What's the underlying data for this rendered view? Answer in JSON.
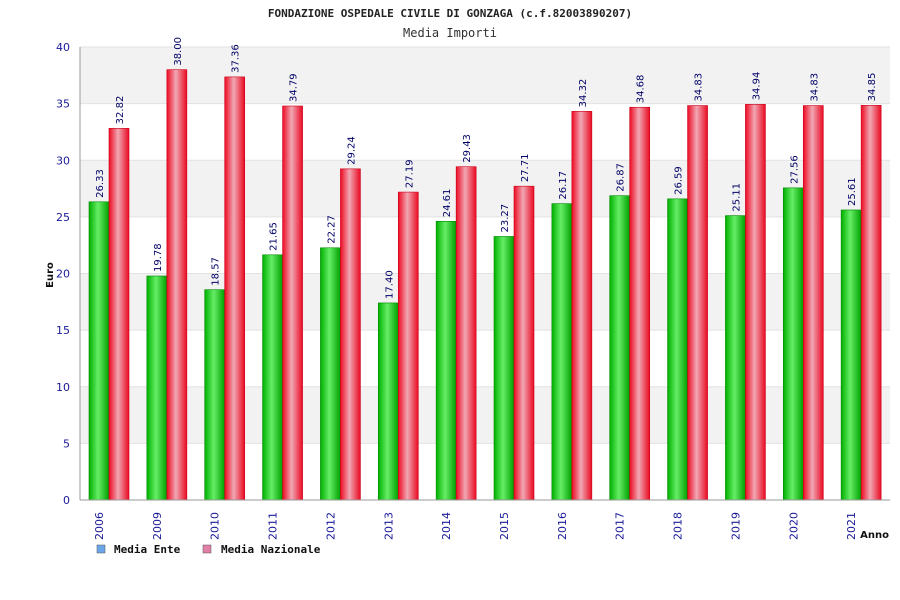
{
  "chart_data": {
    "type": "bar",
    "title": "FONDAZIONE OSPEDALE CIVILE DI GONZAGA (c.f.82003890207)",
    "subtitle": "Media Importi",
    "xlabel": "Anno",
    "ylabel": "Euro",
    "ylim": [
      0,
      40
    ],
    "yticks": [
      0,
      5,
      10,
      15,
      20,
      25,
      30,
      35,
      40
    ],
    "grid": true,
    "legend_position": "bottom-left",
    "categories": [
      "2006",
      "2009",
      "2010",
      "2011",
      "2012",
      "2013",
      "2014",
      "2015",
      "2016",
      "2017",
      "2018",
      "2019",
      "2020",
      "2021"
    ],
    "series": [
      {
        "name": "Media Ente",
        "color": "#00b000",
        "legend_color": "#6aa6e8",
        "values": [
          26.33,
          19.78,
          18.57,
          21.65,
          22.27,
          17.4,
          24.61,
          23.27,
          26.17,
          26.87,
          26.59,
          25.11,
          27.56,
          25.61
        ],
        "labels": [
          "26.33",
          "19.78",
          "18.57",
          "21.65",
          "22.27",
          "17.40",
          "24.61",
          "23.27",
          "26.17",
          "26.87",
          "26.59",
          "25.11",
          "27.56",
          "25.61"
        ]
      },
      {
        "name": "Media Nazionale",
        "color": "#e8102a",
        "legend_color": "#e27fa8",
        "values": [
          32.82,
          38.0,
          37.36,
          34.79,
          29.24,
          27.19,
          29.43,
          27.71,
          34.32,
          34.68,
          34.83,
          34.94,
          34.83,
          34.85
        ],
        "labels": [
          "32.82",
          "38.00",
          "37.36",
          "34.79",
          "29.24",
          "27.19",
          "29.43",
          "27.71",
          "34.32",
          "34.68",
          "34.83",
          "34.94",
          "34.83",
          "34.85"
        ]
      }
    ]
  }
}
